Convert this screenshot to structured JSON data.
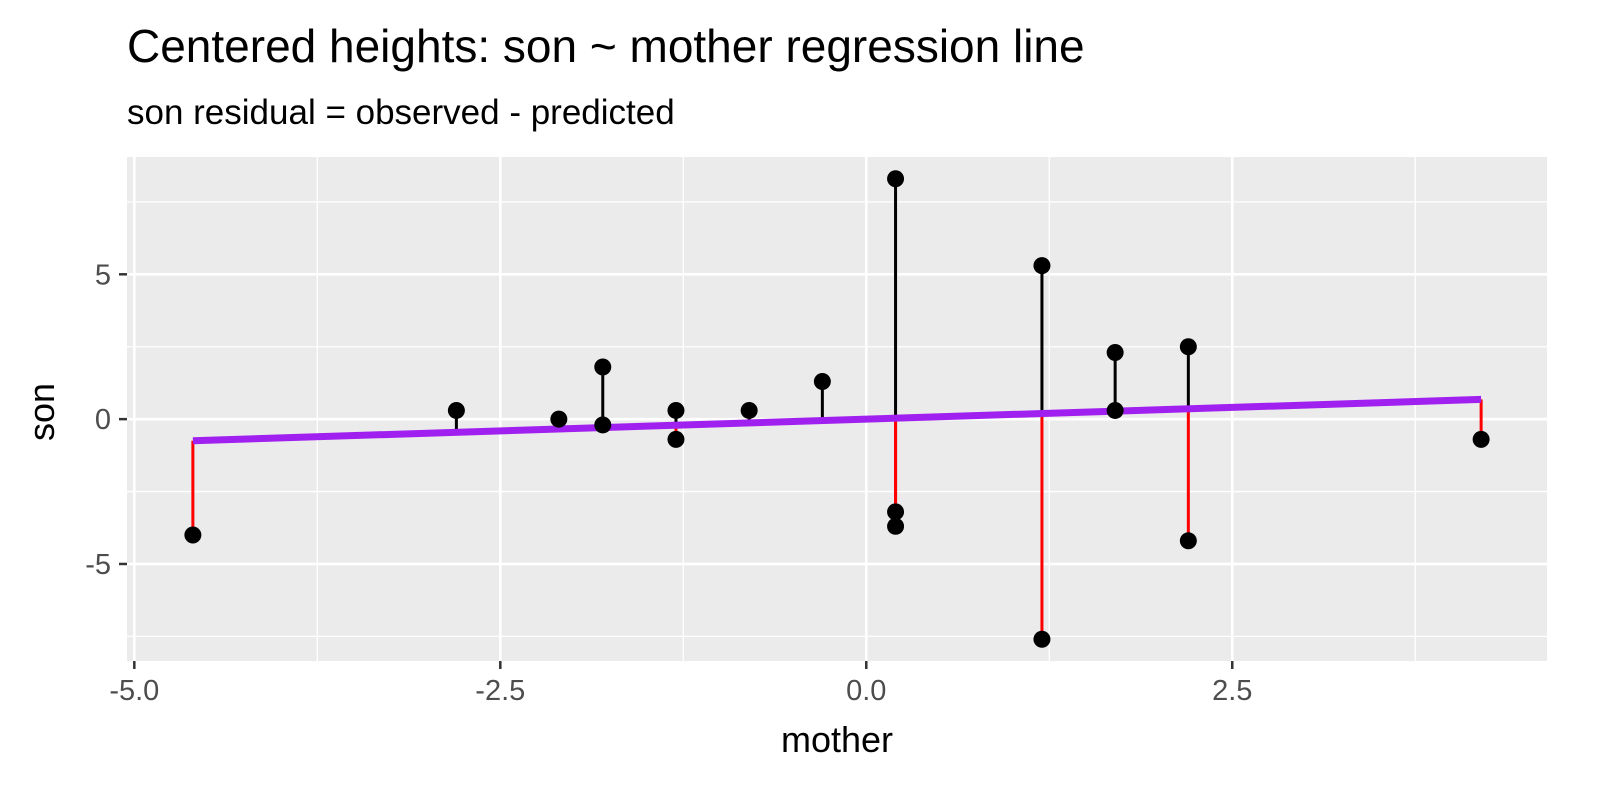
{
  "chart_data": {
    "type": "scatter",
    "title": "Centered heights: son ~ mother regression line",
    "subtitle": "son residual = observed - predicted",
    "xlabel": "mother",
    "ylabel": "son",
    "xlim": [
      -5.05,
      4.65
    ],
    "ylim": [
      -8.35,
      9.05
    ],
    "x_ticks": [
      -5.0,
      -2.5,
      0.0,
      2.5
    ],
    "x_tick_labels": [
      "-5.0",
      "-2.5",
      "0.0",
      "2.5"
    ],
    "y_ticks": [
      -5,
      0,
      5
    ],
    "y_tick_labels": [
      "-5",
      "0",
      "5"
    ],
    "grid": true,
    "regression_line": {
      "intercept": 0.0,
      "slope": 0.162,
      "x_range": [
        -4.6,
        4.2
      ],
      "color": "#a020f0"
    },
    "residual_colors": {
      "positive": "#000000",
      "negative": "#ff0000"
    },
    "points": [
      {
        "x": -4.6,
        "y": -4.0
      },
      {
        "x": -2.8,
        "y": 0.3
      },
      {
        "x": -2.1,
        "y": 0.0
      },
      {
        "x": -1.8,
        "y": 1.8
      },
      {
        "x": -1.8,
        "y": -0.2
      },
      {
        "x": -1.3,
        "y": 0.3
      },
      {
        "x": -1.3,
        "y": -0.7
      },
      {
        "x": -0.8,
        "y": 0.3
      },
      {
        "x": -0.3,
        "y": 1.3
      },
      {
        "x": 0.2,
        "y": 8.3
      },
      {
        "x": 0.2,
        "y": -3.2
      },
      {
        "x": 0.2,
        "y": -3.7
      },
      {
        "x": 1.2,
        "y": 5.3
      },
      {
        "x": 1.2,
        "y": -7.6
      },
      {
        "x": 1.7,
        "y": 2.3
      },
      {
        "x": 1.7,
        "y": 0.3
      },
      {
        "x": 2.2,
        "y": 2.5
      },
      {
        "x": 2.2,
        "y": -4.2
      },
      {
        "x": 4.2,
        "y": -0.7
      }
    ]
  }
}
